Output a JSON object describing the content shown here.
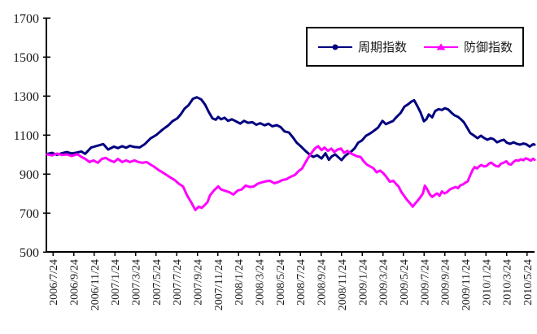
{
  "background_color": "#FFFFFF",
  "text_color": "#1A1A1A",
  "axis_color": "#000000",
  "chart_data": {
    "type": "line",
    "title": "",
    "grid": false,
    "legend": {
      "position": "top-right",
      "bordered": true
    },
    "y_axis": {
      "min": 500,
      "max": 1700,
      "tick_interval": 200,
      "ticks": [
        500,
        700,
        900,
        1100,
        1300,
        1500,
        1700
      ]
    },
    "x_axis": {
      "labels": [
        "2006/7/24",
        "2006/9/24",
        "2006/11/24",
        "2007/1/24",
        "2007/3/24",
        "2007/5/24",
        "2007/7/24",
        "2007/9/24",
        "2007/11/24",
        "2008/1/24",
        "2008/3/24",
        "2008/5/24",
        "2008/7/24",
        "2008/9/24",
        "2008/11/24",
        "2009/1/24",
        "2009/3/24",
        "2009/5/24",
        "2009/7/24",
        "2009/9/24",
        "2009/11/24",
        "2010/1/24",
        "2010/3/24",
        "2010/5/24"
      ],
      "first_frac": 0.012,
      "step_frac": 0.0423,
      "label_rotation_deg": -90
    },
    "series": [
      {
        "name": "周期指数",
        "color": "#000080",
        "marker": "circle",
        "points": [
          [
            0.0,
            1002
          ],
          [
            0.01,
            1008
          ],
          [
            0.02,
            998
          ],
          [
            0.03,
            1006
          ],
          [
            0.04,
            1012
          ],
          [
            0.05,
            1005
          ],
          [
            0.062,
            1010
          ],
          [
            0.07,
            1015
          ],
          [
            0.078,
            1003
          ],
          [
            0.09,
            1035
          ],
          [
            0.104,
            1045
          ],
          [
            0.115,
            1053
          ],
          [
            0.125,
            1025
          ],
          [
            0.137,
            1040
          ],
          [
            0.145,
            1032
          ],
          [
            0.154,
            1042
          ],
          [
            0.162,
            1034
          ],
          [
            0.17,
            1044
          ],
          [
            0.179,
            1038
          ],
          [
            0.19,
            1036
          ],
          [
            0.2,
            1052
          ],
          [
            0.212,
            1082
          ],
          [
            0.224,
            1100
          ],
          [
            0.237,
            1128
          ],
          [
            0.249,
            1150
          ],
          [
            0.257,
            1170
          ],
          [
            0.267,
            1185
          ],
          [
            0.274,
            1205
          ],
          [
            0.282,
            1235
          ],
          [
            0.29,
            1252
          ],
          [
            0.299,
            1285
          ],
          [
            0.307,
            1293
          ],
          [
            0.316,
            1282
          ],
          [
            0.324,
            1255
          ],
          [
            0.332,
            1215
          ],
          [
            0.339,
            1185
          ],
          [
            0.346,
            1178
          ],
          [
            0.351,
            1192
          ],
          [
            0.357,
            1180
          ],
          [
            0.364,
            1188
          ],
          [
            0.371,
            1172
          ],
          [
            0.379,
            1180
          ],
          [
            0.387,
            1170
          ],
          [
            0.396,
            1158
          ],
          [
            0.404,
            1172
          ],
          [
            0.412,
            1162
          ],
          [
            0.421,
            1165
          ],
          [
            0.429,
            1152
          ],
          [
            0.437,
            1160
          ],
          [
            0.446,
            1149
          ],
          [
            0.454,
            1157
          ],
          [
            0.462,
            1144
          ],
          [
            0.471,
            1150
          ],
          [
            0.479,
            1140
          ],
          [
            0.487,
            1118
          ],
          [
            0.496,
            1112
          ],
          [
            0.504,
            1088
          ],
          [
            0.512,
            1060
          ],
          [
            0.521,
            1040
          ],
          [
            0.529,
            1020
          ],
          [
            0.538,
            1000
          ],
          [
            0.546,
            987
          ],
          [
            0.554,
            996
          ],
          [
            0.563,
            979
          ],
          [
            0.571,
            1006
          ],
          [
            0.578,
            972
          ],
          [
            0.584,
            990
          ],
          [
            0.591,
            1000
          ],
          [
            0.598,
            984
          ],
          [
            0.604,
            971
          ],
          [
            0.611,
            992
          ],
          [
            0.618,
            1005
          ],
          [
            0.624,
            1015
          ],
          [
            0.631,
            1032
          ],
          [
            0.638,
            1060
          ],
          [
            0.646,
            1072
          ],
          [
            0.654,
            1095
          ],
          [
            0.663,
            1108
          ],
          [
            0.671,
            1122
          ],
          [
            0.679,
            1138
          ],
          [
            0.688,
            1172
          ],
          [
            0.695,
            1155
          ],
          [
            0.701,
            1162
          ],
          [
            0.71,
            1172
          ],
          [
            0.716,
            1190
          ],
          [
            0.725,
            1212
          ],
          [
            0.733,
            1245
          ],
          [
            0.741,
            1258
          ],
          [
            0.748,
            1272
          ],
          [
            0.753,
            1278
          ],
          [
            0.76,
            1246
          ],
          [
            0.766,
            1216
          ],
          [
            0.773,
            1170
          ],
          [
            0.778,
            1180
          ],
          [
            0.783,
            1205
          ],
          [
            0.79,
            1190
          ],
          [
            0.796,
            1222
          ],
          [
            0.803,
            1232
          ],
          [
            0.81,
            1228
          ],
          [
            0.816,
            1237
          ],
          [
            0.823,
            1230
          ],
          [
            0.83,
            1212
          ],
          [
            0.836,
            1200
          ],
          [
            0.843,
            1192
          ],
          [
            0.85,
            1178
          ],
          [
            0.855,
            1165
          ],
          [
            0.861,
            1140
          ],
          [
            0.868,
            1110
          ],
          [
            0.875,
            1098
          ],
          [
            0.883,
            1083
          ],
          [
            0.89,
            1096
          ],
          [
            0.896,
            1085
          ],
          [
            0.903,
            1075
          ],
          [
            0.91,
            1083
          ],
          [
            0.916,
            1078
          ],
          [
            0.923,
            1062
          ],
          [
            0.93,
            1070
          ],
          [
            0.937,
            1075
          ],
          [
            0.943,
            1060
          ],
          [
            0.95,
            1054
          ],
          [
            0.957,
            1062
          ],
          [
            0.963,
            1055
          ],
          [
            0.97,
            1050
          ],
          [
            0.977,
            1056
          ],
          [
            0.983,
            1052
          ],
          [
            0.99,
            1040
          ],
          [
            0.997,
            1052
          ],
          [
            1.0,
            1050
          ]
        ]
      },
      {
        "name": "防御指数",
        "color": "#FF00FF",
        "marker": "triangle",
        "points": [
          [
            0.0,
            1000
          ],
          [
            0.01,
            995
          ],
          [
            0.02,
            1004
          ],
          [
            0.03,
            997
          ],
          [
            0.04,
            1000
          ],
          [
            0.05,
            992
          ],
          [
            0.062,
            1001
          ],
          [
            0.07,
            988
          ],
          [
            0.078,
            977
          ],
          [
            0.087,
            961
          ],
          [
            0.095,
            969
          ],
          [
            0.104,
            957
          ],
          [
            0.112,
            977
          ],
          [
            0.12,
            982
          ],
          [
            0.129,
            969
          ],
          [
            0.137,
            961
          ],
          [
            0.145,
            977
          ],
          [
            0.154,
            961
          ],
          [
            0.162,
            969
          ],
          [
            0.17,
            961
          ],
          [
            0.179,
            969
          ],
          [
            0.187,
            961
          ],
          [
            0.195,
            957
          ],
          [
            0.204,
            961
          ],
          [
            0.212,
            948
          ],
          [
            0.22,
            936
          ],
          [
            0.229,
            919
          ],
          [
            0.237,
            907
          ],
          [
            0.245,
            894
          ],
          [
            0.254,
            880
          ],
          [
            0.262,
            868
          ],
          [
            0.27,
            850
          ],
          [
            0.279,
            835
          ],
          [
            0.287,
            790
          ],
          [
            0.296,
            752
          ],
          [
            0.304,
            715
          ],
          [
            0.311,
            732
          ],
          [
            0.317,
            726
          ],
          [
            0.324,
            742
          ],
          [
            0.329,
            756
          ],
          [
            0.334,
            790
          ],
          [
            0.342,
            815
          ],
          [
            0.351,
            836
          ],
          [
            0.357,
            820
          ],
          [
            0.366,
            813
          ],
          [
            0.374,
            806
          ],
          [
            0.382,
            794
          ],
          [
            0.391,
            815
          ],
          [
            0.399,
            820
          ],
          [
            0.407,
            840
          ],
          [
            0.416,
            833
          ],
          [
            0.424,
            836
          ],
          [
            0.432,
            850
          ],
          [
            0.441,
            857
          ],
          [
            0.449,
            862
          ],
          [
            0.457,
            865
          ],
          [
            0.466,
            852
          ],
          [
            0.474,
            858
          ],
          [
            0.482,
            868
          ],
          [
            0.491,
            873
          ],
          [
            0.499,
            885
          ],
          [
            0.508,
            894
          ],
          [
            0.516,
            915
          ],
          [
            0.523,
            928
          ],
          [
            0.529,
            955
          ],
          [
            0.536,
            985
          ],
          [
            0.543,
            1010
          ],
          [
            0.549,
            1030
          ],
          [
            0.556,
            1042
          ],
          [
            0.563,
            1022
          ],
          [
            0.569,
            1035
          ],
          [
            0.576,
            1018
          ],
          [
            0.583,
            1030
          ],
          [
            0.589,
            1012
          ],
          [
            0.596,
            1025
          ],
          [
            0.603,
            1030
          ],
          [
            0.609,
            1008
          ],
          [
            0.616,
            1018
          ],
          [
            0.623,
            1005
          ],
          [
            0.629,
            998
          ],
          [
            0.636,
            990
          ],
          [
            0.643,
            987
          ],
          [
            0.649,
            966
          ],
          [
            0.656,
            948
          ],
          [
            0.663,
            938
          ],
          [
            0.669,
            930
          ],
          [
            0.676,
            908
          ],
          [
            0.683,
            917
          ],
          [
            0.689,
            905
          ],
          [
            0.696,
            885
          ],
          [
            0.703,
            860
          ],
          [
            0.71,
            865
          ],
          [
            0.716,
            848
          ],
          [
            0.721,
            835
          ],
          [
            0.726,
            810
          ],
          [
            0.731,
            792
          ],
          [
            0.738,
            768
          ],
          [
            0.745,
            748
          ],
          [
            0.75,
            732
          ],
          [
            0.755,
            748
          ],
          [
            0.76,
            762
          ],
          [
            0.765,
            778
          ],
          [
            0.771,
            800
          ],
          [
            0.775,
            840
          ],
          [
            0.78,
            820
          ],
          [
            0.785,
            795
          ],
          [
            0.79,
            782
          ],
          [
            0.795,
            792
          ],
          [
            0.8,
            800
          ],
          [
            0.805,
            788
          ],
          [
            0.81,
            810
          ],
          [
            0.815,
            800
          ],
          [
            0.82,
            806
          ],
          [
            0.826,
            820
          ],
          [
            0.833,
            828
          ],
          [
            0.838,
            833
          ],
          [
            0.843,
            827
          ],
          [
            0.848,
            842
          ],
          [
            0.853,
            846
          ],
          [
            0.858,
            855
          ],
          [
            0.863,
            862
          ],
          [
            0.868,
            893
          ],
          [
            0.873,
            920
          ],
          [
            0.877,
            935
          ],
          [
            0.882,
            928
          ],
          [
            0.887,
            940
          ],
          [
            0.891,
            946
          ],
          [
            0.896,
            938
          ],
          [
            0.901,
            940
          ],
          [
            0.906,
            952
          ],
          [
            0.911,
            958
          ],
          [
            0.916,
            948
          ],
          [
            0.921,
            940
          ],
          [
            0.926,
            938
          ],
          [
            0.931,
            952
          ],
          [
            0.937,
            958
          ],
          [
            0.942,
            965
          ],
          [
            0.947,
            950
          ],
          [
            0.952,
            948
          ],
          [
            0.957,
            962
          ],
          [
            0.962,
            970
          ],
          [
            0.967,
            968
          ],
          [
            0.972,
            975
          ],
          [
            0.977,
            970
          ],
          [
            0.982,
            980
          ],
          [
            0.987,
            975
          ],
          [
            0.992,
            968
          ],
          [
            0.997,
            978
          ],
          [
            1.0,
            972
          ]
        ]
      }
    ]
  }
}
